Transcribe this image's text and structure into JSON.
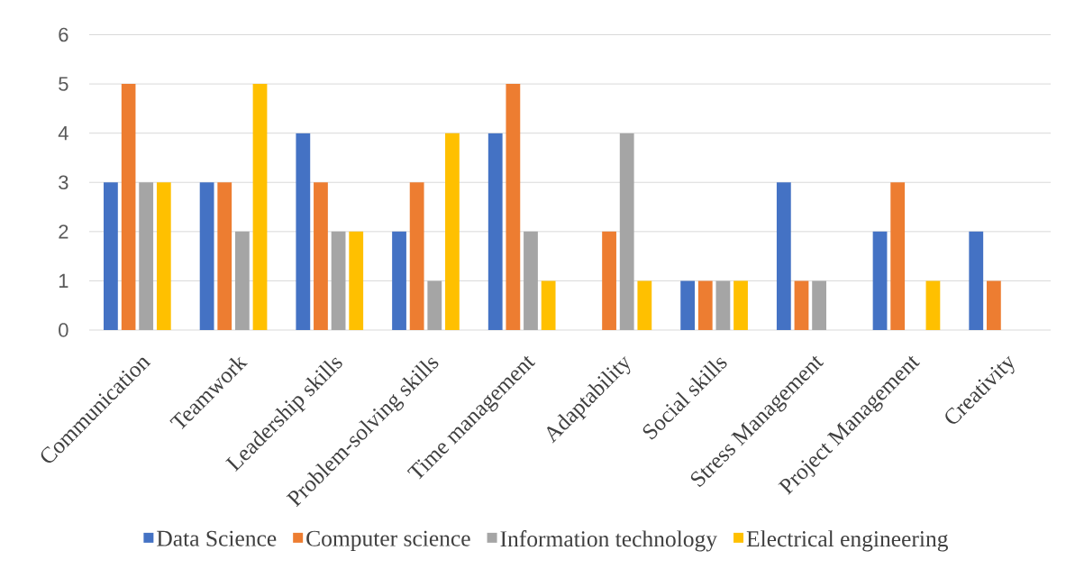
{
  "chart_data": {
    "type": "bar",
    "categories": [
      "Communication",
      "Teamwork",
      "Leadership skills",
      "Problem-solving skills",
      "Time management",
      "Adaptability",
      "Social skills",
      "Stress Management",
      "Project Management",
      "Creativity"
    ],
    "series": [
      {
        "name": "Data Science",
        "color": "#4472c4",
        "values": [
          3,
          3,
          4,
          2,
          4,
          null,
          1,
          3,
          2,
          2
        ]
      },
      {
        "name": "Computer science",
        "color": "#ed7d31",
        "values": [
          5,
          3,
          3,
          3,
          5,
          2,
          1,
          1,
          3,
          1
        ]
      },
      {
        "name": "Information technology",
        "color": "#a5a5a5",
        "values": [
          3,
          2,
          2,
          1,
          2,
          4,
          1,
          1,
          null,
          null
        ]
      },
      {
        "name": "Electrical engineering",
        "color": "#ffc000",
        "values": [
          3,
          5,
          2,
          4,
          1,
          1,
          1,
          null,
          1,
          null
        ]
      }
    ],
    "ylim": [
      0,
      6
    ],
    "yticks": [
      0,
      1,
      2,
      3,
      4,
      5,
      6
    ],
    "grid": "y",
    "legend": "bottom"
  }
}
